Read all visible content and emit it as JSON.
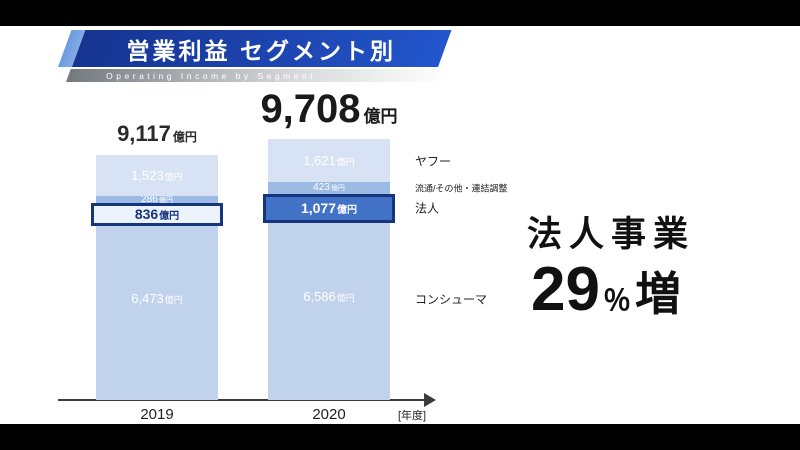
{
  "header": {
    "title": "営業利益 セグメント別",
    "subtitle": "Operating Income by Segment"
  },
  "callout": {
    "line1": "法人事業",
    "number": "29",
    "percent_sign": "％",
    "suffix": "増"
  },
  "chart_data": {
    "type": "bar",
    "stacked": true,
    "title": "営業利益 セグメント別",
    "subtitle": "Operating Income by Segment",
    "unit": "億円",
    "categories": [
      "2019",
      "2020"
    ],
    "axis_note": "[年度]",
    "legend_position": "right",
    "grid": false,
    "totals": [
      {
        "value": 9117,
        "label": "9,117"
      },
      {
        "value": 9708,
        "label": "9,708"
      }
    ],
    "series": [
      {
        "name": "コンシューマ",
        "key": "consumer",
        "values": [
          6473,
          6586
        ],
        "labels": [
          "6,473",
          "6,586"
        ]
      },
      {
        "name": "法人",
        "key": "hojin",
        "values": [
          836,
          1077
        ],
        "labels": [
          "836",
          "1,077"
        ],
        "highlight": true
      },
      {
        "name": "流通/その他・連結調整",
        "key": "ryutsu",
        "values": [
          286,
          423
        ],
        "labels": [
          "286",
          "423"
        ],
        "small": true
      },
      {
        "name": "ヤフー",
        "key": "yahoo",
        "values": [
          1523,
          1621
        ],
        "labels": [
          "1,523",
          "1,621"
        ]
      }
    ],
    "colors": {
      "consumer": "#c0d2ec",
      "ryutsu": "#9cbbe4",
      "yahoo": "#d7e2f4",
      "highlight_fill": [
        "#edf3fc",
        "#4272c6"
      ],
      "highlight_text": [
        "#16357e",
        "#ffffff"
      ],
      "highlight_border": "#16357e",
      "value_text": "#ffffff"
    },
    "annotation": "法人事業 29％増"
  }
}
